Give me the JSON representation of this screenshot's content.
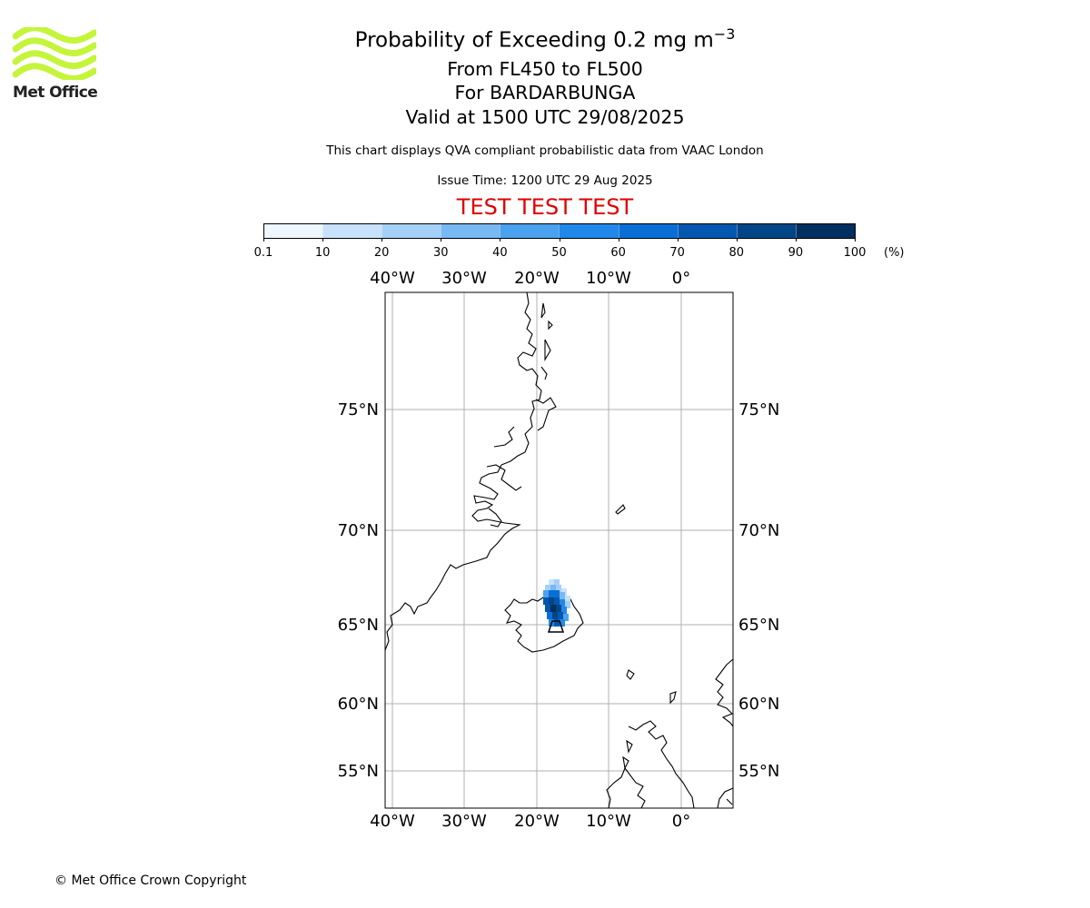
{
  "logo": {
    "text": "Met Office",
    "color": "#c4f53a"
  },
  "header": {
    "title": "Probability of Exceeding 0.2 mg m",
    "title_sup": "−3",
    "levels": "From FL450 to FL500",
    "volcano": "For BARDARBUNGA",
    "valid": "Valid at 1500 UTC 29/08/2025",
    "description": "This chart displays QVA compliant probabilistic data from VAAC London",
    "issue_time": "Issue Time: 1200 UTC 29 Aug 2025",
    "test_banner": "TEST TEST TEST",
    "test_color": "#e00000"
  },
  "colorbar": {
    "ticks": [
      "0.1",
      "10",
      "20",
      "30",
      "40",
      "50",
      "60",
      "70",
      "80",
      "90",
      "100"
    ],
    "units": "(%)",
    "colors": [
      "#eef6ff",
      "#c8e2fb",
      "#a4cff7",
      "#78b8f3",
      "#4ba2ef",
      "#2188ea",
      "#0a6ed6",
      "#0457af",
      "#024687",
      "#012f5f"
    ]
  },
  "map": {
    "lon_labels": [
      "40°W",
      "30°W",
      "20°W",
      "10°W",
      "0°"
    ],
    "lat_labels": [
      "75°N",
      "70°N",
      "65°N",
      "60°N",
      "55°N"
    ],
    "extent": {
      "lon": [
        -41,
        7
      ],
      "lat": [
        53,
        80
      ]
    },
    "grid_lines": true,
    "volcano_lon": -17.5,
    "volcano_lat": 64.6
  },
  "footer": {
    "copyright": "© Met Office Crown Copyright"
  }
}
